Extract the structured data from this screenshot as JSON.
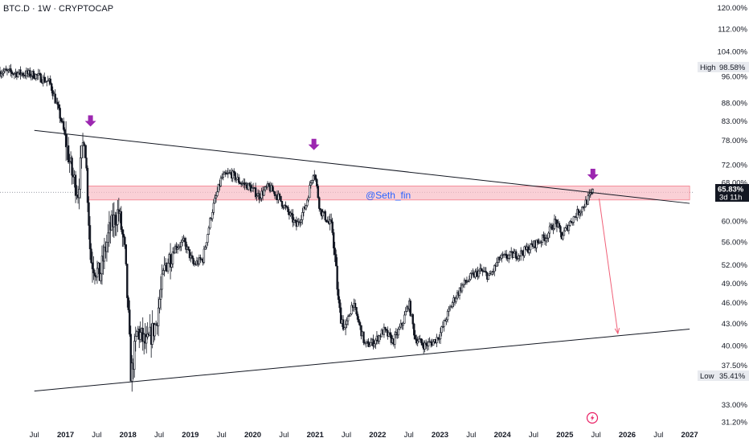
{
  "header": {
    "title": "BTC.D · 1W · CRYPTOCAP"
  },
  "watermark": "@Seth_fin",
  "colors": {
    "candles": "#131722",
    "trendline": "#131722",
    "zone_fill": "#f8bcc4",
    "zone_border": "#f06070",
    "arrow_marker": "#9c27b0",
    "projection": "#f06078",
    "price_tag": "#131722",
    "grid_dots": "#787b86"
  },
  "icons": [
    "arrow-down-marker-icon",
    "lightning-icon"
  ],
  "chart_data": {
    "type": "candlestick",
    "title": "BTC.D · 1W · CRYPTOCAP",
    "scale": "log",
    "y_ticks": [
      "120.00%",
      "112.00%",
      "104.00%",
      "96.00%",
      "88.00%",
      "83.00%",
      "78.00%",
      "72.00%",
      "68.00%",
      "60.00%",
      "56.00%",
      "52.00%",
      "49.00%",
      "46.00%",
      "43.00%",
      "40.00%",
      "37.50%",
      "33.00%",
      "31.20%"
    ],
    "y_tick_values": [
      120,
      112,
      104,
      96,
      88,
      83,
      78,
      72,
      68,
      60,
      56,
      52,
      49,
      46,
      43,
      40,
      37.5,
      33,
      31.2
    ],
    "x_ticks": [
      "Jul",
      "2017",
      "Jul",
      "2018",
      "Jul",
      "2019",
      "Jul",
      "2020",
      "Jul",
      "2021",
      "Jul",
      "2022",
      "Jul",
      "2023",
      "Jul",
      "2024",
      "Jul",
      "2025",
      "Jul",
      "2026",
      "Jul",
      "2027"
    ],
    "x_tick_dates": [
      2016.5,
      2017,
      2017.5,
      2018,
      2018.5,
      2019,
      2019.5,
      2020,
      2020.5,
      2021,
      2021.5,
      2022,
      2022.5,
      2023,
      2023.5,
      2024,
      2024.5,
      2025,
      2025.5,
      2026,
      2026.5,
      2027
    ],
    "y_range": [
      30.8,
      123
    ],
    "x_range": [
      2015.95,
      2027.05
    ],
    "high": {
      "label": "High",
      "value": "98.58%"
    },
    "low": {
      "label": "Low",
      "value": "35.41%"
    },
    "current": {
      "value": "65.83%",
      "countdown": "3d 11h"
    },
    "key_points": [
      {
        "date": 2015.95,
        "value": 97.5
      },
      {
        "date": 2016.5,
        "value": 96.5
      },
      {
        "date": 2016.75,
        "value": 94
      },
      {
        "date": 2016.85,
        "value": 88
      },
      {
        "date": 2016.95,
        "value": 82
      },
      {
        "date": 2017.1,
        "value": 70
      },
      {
        "date": 2017.2,
        "value": 66
      },
      {
        "date": 2017.3,
        "value": 80
      },
      {
        "date": 2017.4,
        "value": 53
      },
      {
        "date": 2017.55,
        "value": 50
      },
      {
        "date": 2017.7,
        "value": 58
      },
      {
        "date": 2017.85,
        "value": 62
      },
      {
        "date": 2017.95,
        "value": 54
      },
      {
        "date": 2018.05,
        "value": 36
      },
      {
        "date": 2018.15,
        "value": 42
      },
      {
        "date": 2018.3,
        "value": 40
      },
      {
        "date": 2018.45,
        "value": 43
      },
      {
        "date": 2018.6,
        "value": 52
      },
      {
        "date": 2018.75,
        "value": 55
      },
      {
        "date": 2018.9,
        "value": 56
      },
      {
        "date": 2019.05,
        "value": 52
      },
      {
        "date": 2019.2,
        "value": 53
      },
      {
        "date": 2019.35,
        "value": 62
      },
      {
        "date": 2019.5,
        "value": 69
      },
      {
        "date": 2019.65,
        "value": 70
      },
      {
        "date": 2019.8,
        "value": 68
      },
      {
        "date": 2019.95,
        "value": 67
      },
      {
        "date": 2020.1,
        "value": 65
      },
      {
        "date": 2020.25,
        "value": 67
      },
      {
        "date": 2020.4,
        "value": 65
      },
      {
        "date": 2020.55,
        "value": 62
      },
      {
        "date": 2020.7,
        "value": 59
      },
      {
        "date": 2020.85,
        "value": 63
      },
      {
        "date": 2020.98,
        "value": 71
      },
      {
        "date": 2021.08,
        "value": 62
      },
      {
        "date": 2021.15,
        "value": 61
      },
      {
        "date": 2021.28,
        "value": 58
      },
      {
        "date": 2021.38,
        "value": 45
      },
      {
        "date": 2021.48,
        "value": 42
      },
      {
        "date": 2021.6,
        "value": 46
      },
      {
        "date": 2021.7,
        "value": 43
      },
      {
        "date": 2021.8,
        "value": 40
      },
      {
        "date": 2021.95,
        "value": 40.5
      },
      {
        "date": 2022.1,
        "value": 42
      },
      {
        "date": 2022.25,
        "value": 40.5
      },
      {
        "date": 2022.4,
        "value": 43
      },
      {
        "date": 2022.5,
        "value": 46
      },
      {
        "date": 2022.6,
        "value": 41
      },
      {
        "date": 2022.75,
        "value": 40
      },
      {
        "date": 2022.9,
        "value": 40.5
      },
      {
        "date": 2023.0,
        "value": 41.5
      },
      {
        "date": 2023.2,
        "value": 46
      },
      {
        "date": 2023.35,
        "value": 48.5
      },
      {
        "date": 2023.5,
        "value": 50
      },
      {
        "date": 2023.65,
        "value": 51
      },
      {
        "date": 2023.8,
        "value": 50
      },
      {
        "date": 2023.95,
        "value": 53
      },
      {
        "date": 2024.1,
        "value": 53.5
      },
      {
        "date": 2024.3,
        "value": 54
      },
      {
        "date": 2024.5,
        "value": 55.5
      },
      {
        "date": 2024.7,
        "value": 57
      },
      {
        "date": 2024.85,
        "value": 60
      },
      {
        "date": 2024.95,
        "value": 57
      },
      {
        "date": 2025.1,
        "value": 60
      },
      {
        "date": 2025.3,
        "value": 63
      },
      {
        "date": 2025.45,
        "value": 65.83
      }
    ],
    "annotations": {
      "upper_trendline": [
        {
          "date": 2016.5,
          "value": 80.5
        },
        {
          "date": 2027.0,
          "value": 63.5
        }
      ],
      "lower_trendline": [
        {
          "date": 2016.5,
          "value": 34.5
        },
        {
          "date": 2027.0,
          "value": 42.2
        }
      ],
      "resistance_zone": {
        "from_date": 2017.35,
        "to_date": 2027.0,
        "low": 64.2,
        "high": 67.2
      },
      "down_arrows": [
        {
          "date": 2017.4,
          "value": 81.5
        },
        {
          "date": 2020.98,
          "value": 75.5
        },
        {
          "date": 2025.45,
          "value": 68.5
        }
      ],
      "projection": [
        {
          "date": 2025.55,
          "value": 64.5
        },
        {
          "date": 2025.85,
          "value": 41.6
        }
      ]
    }
  }
}
